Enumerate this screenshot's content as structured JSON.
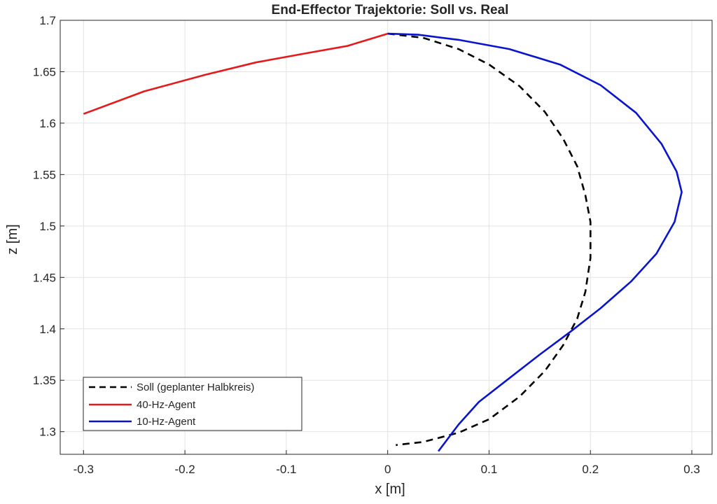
{
  "chart_data": {
    "type": "line",
    "title": "End-Effector Trajektorie: Soll vs. Real",
    "xlabel": "x [m]",
    "ylabel": "z [m]",
    "xlim": [
      -0.323,
      0.32
    ],
    "ylim": [
      1.278,
      1.7
    ],
    "grid": true,
    "legend_position": "bottom-left",
    "x_ticks": [
      -0.3,
      -0.2,
      -0.1,
      0,
      0.1,
      0.2,
      0.3
    ],
    "x_tick_labels": [
      "-0.3",
      "-0.2",
      "-0.1",
      "0",
      "0.1",
      "0.2",
      "0.3"
    ],
    "y_ticks": [
      1.3,
      1.35,
      1.4,
      1.45,
      1.5,
      1.55,
      1.6,
      1.65,
      1.7
    ],
    "y_tick_labels": [
      "1.3",
      "1.35",
      "1.4",
      "1.45",
      "1.5",
      "1.55",
      "1.6",
      "1.65",
      "1.7"
    ],
    "series": [
      {
        "name": "Soll (geplanter Halbkreis)",
        "color": "#000000",
        "style": "dashed",
        "x": [
          0.0,
          0.035,
          0.07,
          0.1,
          0.13,
          0.155,
          0.173,
          0.187,
          0.195,
          0.2,
          0.2,
          0.195,
          0.187,
          0.173,
          0.155,
          0.13,
          0.1,
          0.07,
          0.035,
          0.008
        ],
        "y": [
          1.687,
          1.683,
          1.672,
          1.657,
          1.636,
          1.611,
          1.585,
          1.558,
          1.53,
          1.504,
          1.469,
          1.436,
          1.41,
          1.384,
          1.359,
          1.334,
          1.312,
          1.299,
          1.29,
          1.287
        ]
      },
      {
        "name": "40-Hz-Agent",
        "color": "#e41a1c",
        "style": "solid",
        "x": [
          -0.3,
          -0.24,
          -0.18,
          -0.13,
          -0.08,
          -0.04,
          0.0
        ],
        "y": [
          1.609,
          1.631,
          1.647,
          1.659,
          1.668,
          1.675,
          1.687
        ],
        "label_color": "#cc0000"
      },
      {
        "name": "10-Hz-Agent",
        "color": "#0a14cc",
        "style": "solid",
        "x": [
          0.0,
          0.03,
          0.07,
          0.12,
          0.17,
          0.21,
          0.245,
          0.27,
          0.285,
          0.29,
          0.283,
          0.265,
          0.24,
          0.21,
          0.18,
          0.15,
          0.12,
          0.09,
          0.07,
          0.05
        ],
        "y": [
          1.687,
          1.686,
          1.681,
          1.672,
          1.657,
          1.637,
          1.61,
          1.58,
          1.553,
          1.533,
          1.504,
          1.473,
          1.446,
          1.42,
          1.397,
          1.375,
          1.352,
          1.329,
          1.307,
          1.281
        ]
      }
    ]
  }
}
